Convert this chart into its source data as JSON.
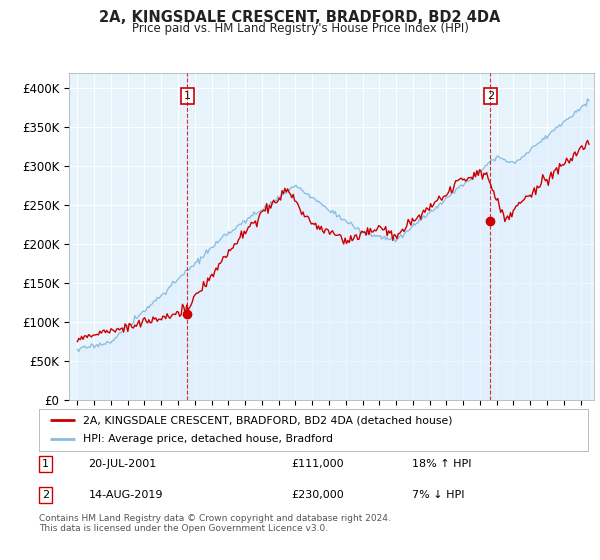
{
  "title": "2A, KINGSDALE CRESCENT, BRADFORD, BD2 4DA",
  "subtitle": "Price paid vs. HM Land Registry's House Price Index (HPI)",
  "ylabel_ticks": [
    "£0",
    "£50K",
    "£100K",
    "£150K",
    "£200K",
    "£250K",
    "£300K",
    "£350K",
    "£400K"
  ],
  "ytick_values": [
    0,
    50000,
    100000,
    150000,
    200000,
    250000,
    300000,
    350000,
    400000
  ],
  "ylim": [
    0,
    420000
  ],
  "xlim_start": 1994.5,
  "xlim_end": 2025.8,
  "red_line_color": "#cc0000",
  "blue_line_color": "#88bbdd",
  "blue_fill_color": "#ddeeff",
  "marker1_x": 2001.55,
  "marker1_y": 111000,
  "marker2_x": 2019.62,
  "marker2_y": 230000,
  "vline1_x": 2001.55,
  "vline2_x": 2019.62,
  "legend_label_red": "2A, KINGSDALE CRESCENT, BRADFORD, BD2 4DA (detached house)",
  "legend_label_blue": "HPI: Average price, detached house, Bradford",
  "table_row1": [
    "1",
    "20-JUL-2001",
    "£111,000",
    "18% ↑ HPI"
  ],
  "table_row2": [
    "2",
    "14-AUG-2019",
    "£230,000",
    "7% ↓ HPI"
  ],
  "footer": "Contains HM Land Registry data © Crown copyright and database right 2024.\nThis data is licensed under the Open Government Licence v3.0.",
  "background_color": "#ffffff",
  "plot_bg_color": "#e8f4fc",
  "grid_color": "#ffffff"
}
